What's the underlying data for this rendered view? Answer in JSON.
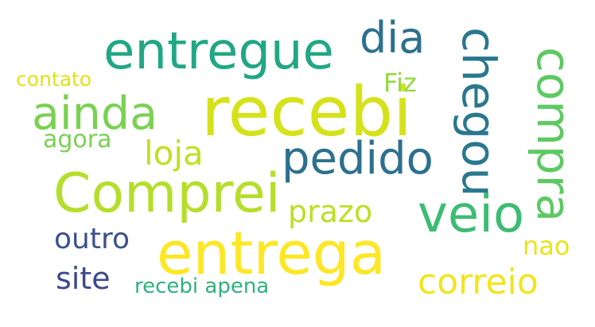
{
  "colors": {
    "background": "#ffffff",
    "recebi": "#d5e21a",
    "entregue": "#22a785",
    "dia": "#2d708e",
    "Fiz": "#95d840",
    "chegou": "#2a788e",
    "compra": "#5ec962",
    "contato": "#dde318",
    "ainda": "#7ad151",
    "agora": "#7ad151",
    "loja": "#c2df23",
    "pedido": "#2c718e",
    "Comprei": "#b5de2b",
    "prazo": "#bddf26",
    "veio": "#3dbc74",
    "entrega": "#fde725",
    "outro": "#3b528b",
    "nao": "#e7e419",
    "site": "#3e4989",
    "recebi_apena": "#2db27d",
    "correio": "#f1e51d"
  },
  "words": {
    "recebi": "recebi",
    "entregue": "entregue",
    "dia": "dia",
    "Fiz": "Fiz",
    "chegou": "chegou",
    "compra": "compra",
    "contato": "contato",
    "ainda": "ainda",
    "agora": "agora",
    "loja": "loja",
    "pedido": "pedido",
    "Comprei": "Comprei",
    "prazo": "prazo",
    "veio": "veio",
    "entrega": "entrega",
    "outro": "outro",
    "nao": "nao",
    "site": "site",
    "recebi_apena": "recebi apena",
    "correio": "correio"
  }
}
